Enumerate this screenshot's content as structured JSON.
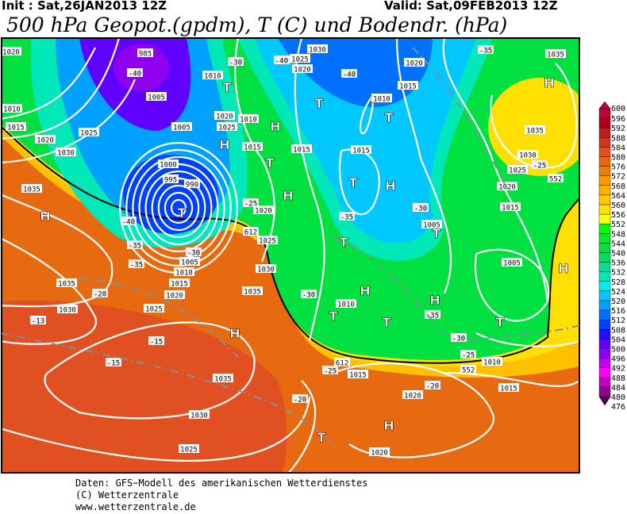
{
  "header": {
    "init": "Init : Sat,26JAN2013 12Z",
    "valid": "Valid: Sat,09FEB2013 12Z",
    "title": "500 hPa Geopot.(gpdm), T (C) und Bodendr. (hPa)"
  },
  "legend": {
    "labels": [
      "600",
      "596",
      "592",
      "588",
      "584",
      "580",
      "576",
      "572",
      "568",
      "564",
      "560",
      "556",
      "552",
      "548",
      "544",
      "540",
      "536",
      "532",
      "528",
      "524",
      "520",
      "516",
      "512",
      "508",
      "504",
      "500",
      "496",
      "492",
      "488",
      "484",
      "480",
      "476"
    ],
    "colors": [
      "#c0004c",
      "#c00030",
      "#b00018",
      "#b82020",
      "#c83820",
      "#e05020",
      "#e86810",
      "#e88008",
      "#ff9800",
      "#ffb000",
      "#ffc800",
      "#ffe000",
      "#ffff00",
      "#00ff00",
      "#00ee20",
      "#00e040",
      "#00e060",
      "#00e090",
      "#00e8b8",
      "#00f0f0",
      "#00c8ff",
      "#00a0ff",
      "#0070ff",
      "#0040ff",
      "#2010ff",
      "#6000ff",
      "#9000f0",
      "#c000f0",
      "#ff00ff",
      "#c000c0",
      "#900090",
      "#500050"
    ]
  },
  "map": {
    "pressure_labels": [
      "1020",
      "985",
      "-40",
      "1005",
      "1010",
      "1025",
      "1030",
      "-40",
      "1020",
      "-40",
      "1020",
      "-35",
      "1035",
      "-30",
      "1015",
      "1010",
      "1010",
      "1015",
      "1025",
      "1020",
      "1005",
      "1020",
      "1010",
      "1025",
      "1015",
      "1015",
      "1015",
      "1030",
      "1000",
      "995",
      "990",
      "1035",
      "-40",
      "-25",
      "1020",
      "612",
      "1025",
      "-35",
      "-30",
      "1005",
      "-35",
      "-35",
      "-30",
      "1005",
      "1010",
      "1015",
      "1020",
      "1030",
      "1035",
      "-20",
      "1035",
      "1030",
      "1025",
      "-30",
      "1010",
      "-35",
      "1005",
      "-13",
      "-15",
      "-15",
      "-30",
      "-25",
      "1010",
      "552",
      "612",
      "-25",
      "1015",
      "-20",
      "1015",
      "1020",
      "-20",
      "1035",
      "1030",
      "1025",
      "1020",
      "1035",
      "1030",
      "1025",
      "-25",
      "552",
      "1020",
      "1015"
    ],
    "centers": [
      "H",
      "T",
      "T",
      "T",
      "H",
      "H",
      "T",
      "H",
      "T",
      "H",
      "T",
      "H",
      "T",
      "T",
      "H",
      "H",
      "H",
      "T",
      "T",
      "H",
      "T",
      "H",
      "T"
    ]
  },
  "footer": {
    "line1": "Daten: GFS−Modell des amerikanischen Wetterdienstes",
    "line2": "(C) Wetterzentrale",
    "line3": "www.wetterzentrale.de"
  }
}
